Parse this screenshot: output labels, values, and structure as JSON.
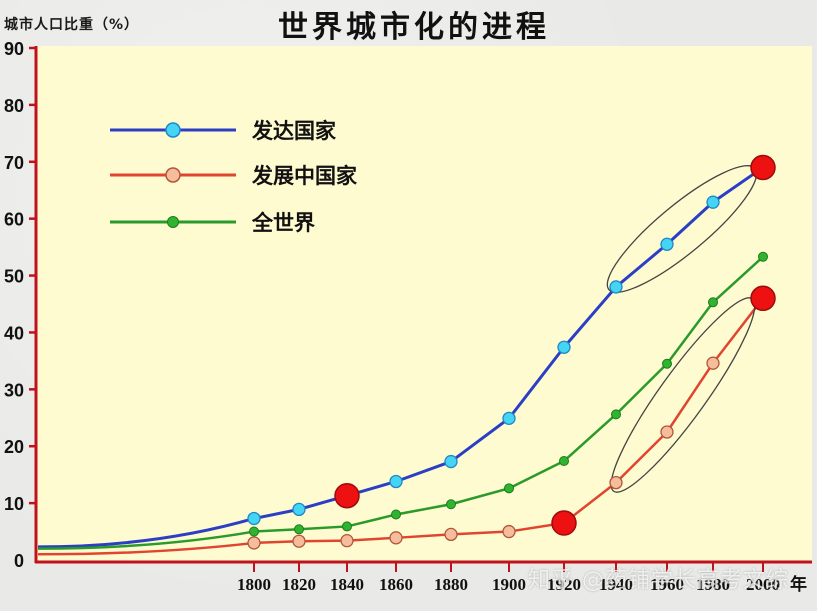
{
  "header": {
    "y_axis_label": "城市人口比重（%）",
    "title": "世界城市化的进程"
  },
  "watermark": "知乎 @药铺学长高考文综",
  "x_unit": "年",
  "colors": {
    "plot_bg": "#fffbd0",
    "axis": "#c0121d",
    "developed": "#2b3fc4",
    "developed_marker": "#45d4f3",
    "developing": "#e0452f",
    "developing_marker": "#f6bd9c",
    "world": "#2a9a2a",
    "world_marker": "#2fb42f",
    "highlight": "#ee1111",
    "ellipse": "#444444"
  },
  "legend": [
    {
      "label": "发达国家",
      "key": "developed"
    },
    {
      "label": "发展中国家",
      "key": "developing"
    },
    {
      "label": "全世界",
      "key": "world"
    }
  ],
  "chart_data": {
    "type": "line",
    "title": "世界城市化的进程",
    "xlabel": "年",
    "ylabel": "城市人口比重（%）",
    "ylim": [
      0,
      90
    ],
    "y_ticks": [
      0,
      10,
      20,
      30,
      40,
      50,
      60,
      70,
      80,
      90
    ],
    "x": [
      1800,
      1820,
      1840,
      1860,
      1880,
      1900,
      1920,
      1940,
      1960,
      1980,
      2000
    ],
    "x_tick_labels": [
      "1800",
      "1820",
      "1840",
      "1860",
      "1880",
      "1900",
      "1920",
      "1940",
      "1960",
      "1980",
      "2000"
    ],
    "series": [
      {
        "name": "发达国家",
        "values": [
          7.3,
          8.9,
          11.3,
          13.8,
          17.3,
          24.9,
          37.4,
          48.0,
          55.5,
          62.9,
          69.0
        ]
      },
      {
        "name": "发展中国家",
        "values": [
          3.0,
          3.3,
          3.4,
          3.9,
          4.5,
          5.0,
          6.5,
          13.6,
          22.5,
          34.6,
          46.0
        ]
      },
      {
        "name": "全世界",
        "values": [
          5.0,
          5.4,
          5.9,
          8.0,
          9.8,
          12.6,
          17.4,
          25.6,
          34.5,
          45.3,
          53.3
        ]
      }
    ],
    "highlighted_points": [
      {
        "series": "发达国家",
        "x": 1840,
        "y": 11.3
      },
      {
        "series": "发达国家",
        "x": 2000,
        "y": 69.0
      },
      {
        "series": "发展中国家",
        "x": 1920,
        "y": 6.5
      },
      {
        "series": "发展中国家",
        "x": 2000,
        "y": 46.0
      }
    ],
    "annotations": [
      {
        "type": "ellipse",
        "series": "发达国家",
        "range": [
          1940,
          2000
        ]
      },
      {
        "type": "ellipse",
        "series": "发展中国家",
        "range": [
          1940,
          2000
        ]
      }
    ],
    "legend_position": "upper-left",
    "grid": false
  }
}
